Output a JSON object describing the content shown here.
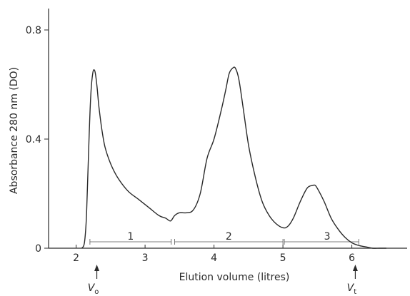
{
  "chart_data": {
    "type": "line",
    "title": "",
    "xlabel": "Elution volume (litres)",
    "ylabel": "Absorbance 280 nm (DO)",
    "xlim": [
      1.6,
      6.9
    ],
    "ylim": [
      0,
      0.8
    ],
    "x_ticks": [
      "2",
      "3",
      "4",
      "5",
      "6"
    ],
    "y_ticks": [
      "0",
      "0.4",
      "0.8"
    ],
    "series": [
      {
        "name": "",
        "x": [
          2.08,
          2.12,
          2.15,
          2.18,
          2.21,
          2.24,
          2.27,
          2.3,
          2.33,
          2.37,
          2.42,
          2.5,
          2.6,
          2.75,
          2.9,
          3.05,
          3.2,
          3.3,
          3.37,
          3.43,
          3.5,
          3.6,
          3.7,
          3.8,
          3.9,
          4.0,
          4.1,
          4.17,
          4.22,
          4.27,
          4.31,
          4.36,
          4.42,
          4.5,
          4.6,
          4.7,
          4.8,
          4.9,
          5.0,
          5.07,
          5.15,
          5.25,
          5.35,
          5.43,
          5.47,
          5.52,
          5.6,
          5.7,
          5.8,
          5.9,
          6.0,
          6.1,
          6.2,
          6.3,
          6.4,
          6.5
        ],
        "y": [
          0.0,
          0.02,
          0.12,
          0.35,
          0.55,
          0.64,
          0.65,
          0.6,
          0.52,
          0.44,
          0.37,
          0.31,
          0.26,
          0.21,
          0.18,
          0.15,
          0.12,
          0.11,
          0.1,
          0.12,
          0.13,
          0.13,
          0.14,
          0.2,
          0.33,
          0.4,
          0.5,
          0.58,
          0.64,
          0.66,
          0.66,
          0.62,
          0.52,
          0.38,
          0.26,
          0.17,
          0.12,
          0.09,
          0.075,
          0.08,
          0.11,
          0.17,
          0.22,
          0.23,
          0.23,
          0.21,
          0.17,
          0.11,
          0.07,
          0.04,
          0.02,
          0.01,
          0.005,
          0.0,
          0.0,
          0.0
        ]
      }
    ],
    "fractions": [
      {
        "label": "1",
        "from": 2.2,
        "to": 3.38
      },
      {
        "label": "2",
        "from": 3.43,
        "to": 5.0
      },
      {
        "label": "3",
        "from": 5.02,
        "to": 6.1
      }
    ],
    "markers": [
      {
        "label": "Vo",
        "main": "V",
        "sub": "o",
        "x": 2.3
      },
      {
        "label": "Vt",
        "main": "V",
        "sub": "t",
        "x": 6.05
      }
    ],
    "grid": false,
    "legend": "none"
  }
}
